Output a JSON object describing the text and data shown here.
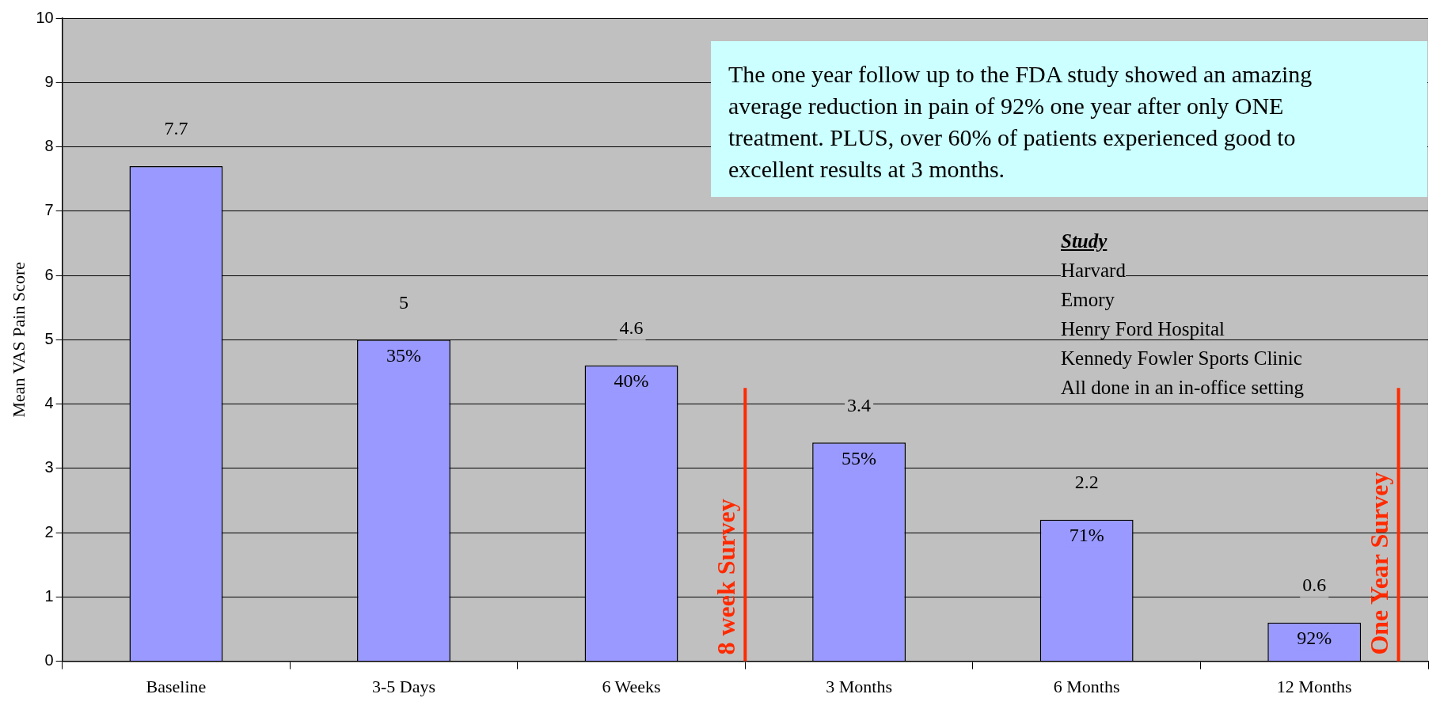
{
  "chart_data": {
    "type": "bar",
    "ylabel": "Mean VAS Pain Score",
    "categories": [
      "Baseline",
      "3-5 Days",
      "6 Weeks",
      "3 Months",
      "6 Months",
      "12 Months"
    ],
    "values": [
      7.7,
      5,
      4.6,
      3.4,
      2.2,
      0.6
    ],
    "color": "#9999ff",
    "ylim": [
      0,
      10
    ],
    "yticks": [
      0,
      1,
      2,
      3,
      4,
      5,
      6,
      7,
      8,
      9,
      10
    ],
    "grid": "y",
    "data_labels": true,
    "annotations": [
      "35%",
      "40%",
      "55%",
      "71%",
      "92%",
      "The one year follow up to the FDA study showed an amazing average reduction in pain of 92% one year after only ONE treatment.  PLUS, over 60% of patients experienced good to excellent results at 3 months.",
      "Study",
      "Harvard",
      "Emory",
      "Henry Ford Hospital",
      "Kennedy Fowler Sports Clinic",
      "All done in an in-office setting",
      "8 week Survey",
      "One Year Survey"
    ]
  }
}
